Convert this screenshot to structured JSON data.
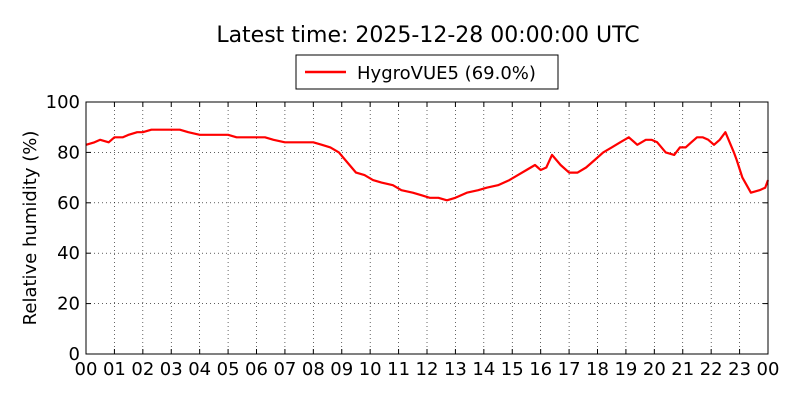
{
  "chart_data": {
    "type": "line",
    "title": "Latest time: 2025-12-28 00:00:00 UTC",
    "xlabel": "",
    "ylabel": "Relative humidity (%)",
    "xlim": [
      0,
      24
    ],
    "ylim": [
      0,
      100
    ],
    "grid": true,
    "legend_position": "top-center",
    "x_tick_labels": [
      "00",
      "01",
      "02",
      "03",
      "04",
      "05",
      "06",
      "07",
      "08",
      "09",
      "10",
      "11",
      "12",
      "13",
      "14",
      "15",
      "16",
      "17",
      "18",
      "19",
      "20",
      "21",
      "22",
      "23",
      "00"
    ],
    "y_tick_labels": [
      "0",
      "20",
      "40",
      "60",
      "80",
      "100"
    ],
    "series": [
      {
        "name": "HygroVUE5 (69.0%)",
        "color": "#ff0000",
        "x_hours": [
          0,
          0.3,
          0.5,
          0.8,
          1,
          1.3,
          1.5,
          1.8,
          2,
          2.3,
          2.6,
          2.9,
          3.3,
          3.6,
          4,
          4.3,
          4.6,
          5,
          5.3,
          5.6,
          6,
          6.3,
          6.6,
          7,
          7.5,
          8,
          8.3,
          8.6,
          8.9,
          9.2,
          9.5,
          9.8,
          10.1,
          10.4,
          10.8,
          11.1,
          11.5,
          11.8,
          12.1,
          12.4,
          12.7,
          13,
          13.4,
          13.8,
          14.1,
          14.5,
          14.9,
          15.2,
          15.5,
          15.8,
          16,
          16.2,
          16.4,
          16.7,
          17,
          17.3,
          17.6,
          17.9,
          18.2,
          18.5,
          18.8,
          19.1,
          19.4,
          19.7,
          19.9,
          20.1,
          20.4,
          20.7,
          20.9,
          21.1,
          21.3,
          21.5,
          21.7,
          21.9,
          22.1,
          22.3,
          22.5,
          22.8,
          22.9,
          23.1,
          23.4,
          23.7,
          23.9,
          24
        ],
        "values": [
          83,
          84,
          85,
          84,
          86,
          86,
          87,
          88,
          88,
          89,
          89,
          89,
          89,
          88,
          87,
          87,
          87,
          87,
          86,
          86,
          86,
          86,
          85,
          84,
          84,
          84,
          83,
          82,
          80,
          76,
          72,
          71,
          69,
          68,
          67,
          65,
          64,
          63,
          62,
          62,
          61,
          62,
          64,
          65,
          66,
          67,
          69,
          71,
          73,
          75,
          73,
          74,
          79,
          75,
          72,
          72,
          74,
          77,
          80,
          82,
          84,
          86,
          83,
          85,
          85,
          84,
          80,
          79,
          82,
          82,
          84,
          86,
          86,
          85,
          83,
          85,
          88,
          80,
          77,
          70,
          64,
          65,
          66,
          69
        ]
      }
    ]
  }
}
